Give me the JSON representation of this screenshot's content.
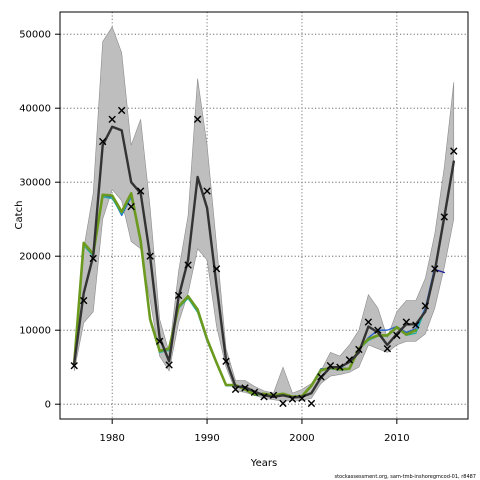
{
  "chart_data": {
    "type": "line",
    "xlabel": "Years",
    "ylabel": "Catch",
    "footer": "stockassessment.org, sam-tmb-inshoregmcod-01, r8487",
    "xlim": [
      1974.5,
      2017.5
    ],
    "ylim": [
      -2000,
      53000
    ],
    "xticks": [
      1980,
      1990,
      2000,
      2010
    ],
    "yticks": [
      0,
      10000,
      20000,
      30000,
      40000,
      50000
    ],
    "grid": true,
    "band": {
      "x": [
        1976,
        1977,
        1978,
        1979,
        1980,
        1981,
        1982,
        1983,
        1984,
        1985,
        1986,
        1987,
        1988,
        1989,
        1990,
        1991,
        1992,
        1993,
        1994,
        1995,
        1996,
        1997,
        1998,
        1999,
        2000,
        2001,
        2002,
        2003,
        2004,
        2005,
        2006,
        2007,
        2008,
        2009,
        2010,
        2011,
        2012,
        2013,
        2014,
        2015,
        2016
      ],
      "lower": [
        4500,
        11000,
        12500,
        25000,
        29000,
        27500,
        22000,
        21000,
        14000,
        6500,
        4500,
        11000,
        15000,
        21000,
        19500,
        10500,
        5000,
        1800,
        1600,
        1200,
        800,
        600,
        400,
        500,
        500,
        800,
        2800,
        3800,
        4000,
        4300,
        5000,
        8000,
        7500,
        7000,
        8000,
        8500,
        8500,
        9500,
        13000,
        18500,
        25000
      ],
      "upper": [
        6500,
        21000,
        28500,
        49000,
        51000,
        47500,
        35000,
        38500,
        26500,
        11500,
        7000,
        18000,
        25500,
        44000,
        35000,
        21500,
        7500,
        3200,
        3200,
        2400,
        1800,
        1500,
        5000,
        1500,
        2000,
        2800,
        4500,
        7000,
        6500,
        8000,
        10000,
        14800,
        13000,
        9000,
        12500,
        14000,
        14000,
        17000,
        23000,
        32000,
        43500
      ]
    },
    "series": [
      {
        "color": "#333333",
        "x": [
          1976,
          1977,
          1978,
          1979,
          1980,
          1981,
          1982,
          1983,
          1984,
          1985,
          1986,
          1987,
          1988,
          1989,
          1990,
          1991,
          1992,
          1993,
          1994,
          1995,
          1996,
          1997,
          1998,
          1999,
          2000,
          2001,
          2002,
          2003,
          2004,
          2005,
          2006,
          2007,
          2008,
          2009,
          2010,
          2011,
          2012,
          2013,
          2014,
          2015,
          2016
        ],
        "y": [
          5500,
          15000,
          20000,
          35000,
          37500,
          37000,
          30000,
          28500,
          20000,
          9000,
          5800,
          14500,
          19500,
          30700,
          26500,
          16000,
          6000,
          2400,
          2300,
          1700,
          1200,
          1000,
          1200,
          900,
          1000,
          1500,
          3600,
          5000,
          5000,
          5700,
          7000,
          10500,
          9700,
          8000,
          9500,
          10800,
          10800,
          12500,
          18000,
          25300,
          32800
        ]
      },
      {
        "color": "#1f5fd0",
        "x": [
          1976,
          1977,
          1978,
          1979,
          1980,
          1981,
          1982,
          1983,
          1984,
          1985,
          1986,
          1987,
          1988,
          1989,
          1990,
          1991,
          1992,
          1993,
          1994,
          1995,
          1996,
          1997,
          1998,
          1999,
          2000,
          2001,
          2002,
          2003,
          2004,
          2005,
          2006,
          2007,
          2008,
          2009,
          2010,
          2011,
          2012,
          2013,
          2014
        ],
        "y": [
          5500,
          21500,
          20000,
          28000,
          28000,
          25500,
          28000,
          22000,
          11500,
          7000,
          7500,
          13000,
          14500,
          12500,
          8500,
          5500,
          2500,
          2500,
          2000,
          1200,
          1300,
          1100,
          1300,
          900,
          1100,
          2600,
          4800,
          4800,
          4900,
          4800,
          7500,
          9000,
          10000,
          10000,
          10500,
          9700,
          10200,
          13000,
          18500
        ]
      },
      {
        "color": "#20b0a0",
        "x": [
          1976,
          1977,
          1978,
          1979,
          1980,
          1981,
          1982,
          1983,
          1984,
          1985,
          1986,
          1987,
          1988,
          1989,
          1990,
          1991,
          1992,
          1993,
          1994,
          1995,
          1996,
          1997,
          1998,
          1999,
          2000,
          2001,
          2002,
          2003,
          2004,
          2005,
          2006,
          2007,
          2008,
          2009,
          2010,
          2011,
          2012,
          2013
        ],
        "y": [
          5500,
          21500,
          20000,
          28000,
          27800,
          25700,
          28200,
          21700,
          11200,
          7000,
          7300,
          13000,
          14300,
          12400,
          8600,
          5400,
          2500,
          2500,
          1900,
          1200,
          1300,
          1100,
          1300,
          900,
          1000,
          2400,
          4500,
          4800,
          4600,
          4700,
          7400,
          8600,
          9200,
          9200,
          10300,
          9300,
          9600,
          12800
        ]
      },
      {
        "color": "#6c9a1e",
        "x": [
          1976,
          1977,
          1978,
          1979,
          1980,
          1981,
          1982,
          1983,
          1984,
          1985,
          1986,
          1987,
          1988,
          1989,
          1990,
          1991,
          1992,
          1993,
          1994,
          1995,
          1996,
          1997,
          1998,
          1999,
          2000,
          2001,
          2002,
          2003,
          2004,
          2005,
          2006,
          2007,
          2008,
          2009,
          2010,
          2011,
          2012
        ],
        "y": [
          5500,
          21800,
          20300,
          28300,
          28200,
          26000,
          28500,
          22000,
          11500,
          7200,
          7500,
          13200,
          14600,
          12800,
          8800,
          5600,
          2600,
          2600,
          2000,
          1300,
          1400,
          1200,
          1400,
          1000,
          1100,
          2500,
          4600,
          4900,
          4700,
          4800,
          7500,
          8800,
          9300,
          9300,
          10400,
          9400,
          10000
        ]
      },
      {
        "color": "#1a1a99",
        "x": [
          2014,
          2015
        ],
        "y": [
          18200,
          17800
        ]
      }
    ],
    "observations": {
      "x": [
        1976,
        1977,
        1978,
        1979,
        1980,
        1981,
        1982,
        1983,
        1984,
        1985,
        1986,
        1987,
        1988,
        1989,
        1990,
        1991,
        1992,
        1993,
        1994,
        1995,
        1996,
        1997,
        1998,
        1999,
        2000,
        2001,
        2002,
        2003,
        2004,
        2005,
        2006,
        2007,
        2008,
        2009,
        2010,
        2011,
        2012,
        2013,
        2014,
        2015,
        2016
      ],
      "y": [
        5200,
        14000,
        19700,
        35500,
        38500,
        39700,
        26700,
        28800,
        20000,
        8500,
        5300,
        14700,
        18800,
        38500,
        28800,
        18300,
        5800,
        2000,
        2200,
        1600,
        1000,
        1200,
        100,
        700,
        800,
        100,
        3700,
        5200,
        5000,
        6000,
        7400,
        11100,
        10000,
        7500,
        9300,
        11100,
        10700,
        13300,
        18300,
        25300,
        34200
      ]
    },
    "colors": {
      "band": "#bebebe",
      "band_edge": "#8c8c8c",
      "marker": "#000000",
      "grid": "#555555",
      "axes": "#000000"
    }
  }
}
